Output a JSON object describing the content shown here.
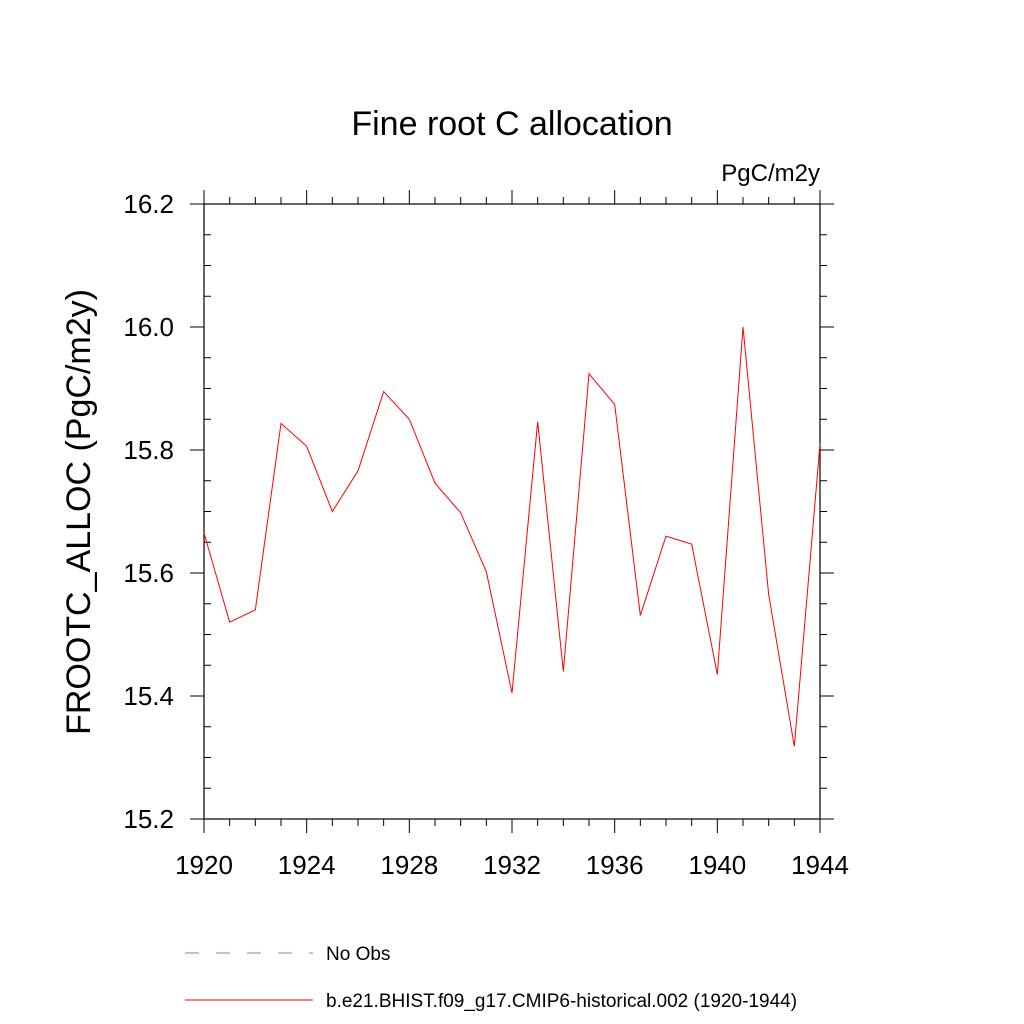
{
  "chart_data": {
    "type": "line",
    "title": "Fine root C allocation",
    "units_label": "PgC/m2y",
    "ylabel": "FROOTC_ALLOC  (PgC/m2y)",
    "xlabel": "",
    "xlim": [
      1920,
      1944
    ],
    "ylim": [
      15.2,
      16.2
    ],
    "x_ticks": [
      1920,
      1924,
      1928,
      1932,
      1936,
      1940,
      1944
    ],
    "x_tick_labels": [
      "1920",
      "1924",
      "1928",
      "1932",
      "1936",
      "1940",
      "1944"
    ],
    "x_minor_step": 1,
    "y_ticks": [
      15.2,
      15.4,
      15.6,
      15.8,
      16.0,
      16.2
    ],
    "y_tick_labels": [
      "15.2",
      "15.4",
      "15.6",
      "15.8",
      "16.0",
      "16.2"
    ],
    "y_minor_step": 0.05,
    "grid": false,
    "legend_position": "bottom",
    "series": [
      {
        "name": "No Obs",
        "color": "#8080c0",
        "dash": "dashed",
        "x": [],
        "values": []
      },
      {
        "name": "b.e21.BHIST.f09_g17.CMIP6-historical.002 (1920-1944)",
        "color": "#ff0000",
        "dash": "solid",
        "x": [
          1920,
          1921,
          1922,
          1923,
          1924,
          1925,
          1926,
          1927,
          1928,
          1929,
          1930,
          1931,
          1932,
          1933,
          1934,
          1935,
          1936,
          1937,
          1938,
          1939,
          1940,
          1941,
          1942,
          1943,
          1944
        ],
        "values": [
          15.665,
          15.52,
          15.54,
          15.843,
          15.806,
          15.7,
          15.766,
          15.895,
          15.85,
          15.746,
          15.698,
          15.602,
          15.405,
          15.846,
          15.44,
          15.924,
          15.874,
          15.531,
          15.66,
          15.647,
          15.435,
          16.0,
          15.565,
          15.318,
          15.81
        ]
      }
    ]
  }
}
